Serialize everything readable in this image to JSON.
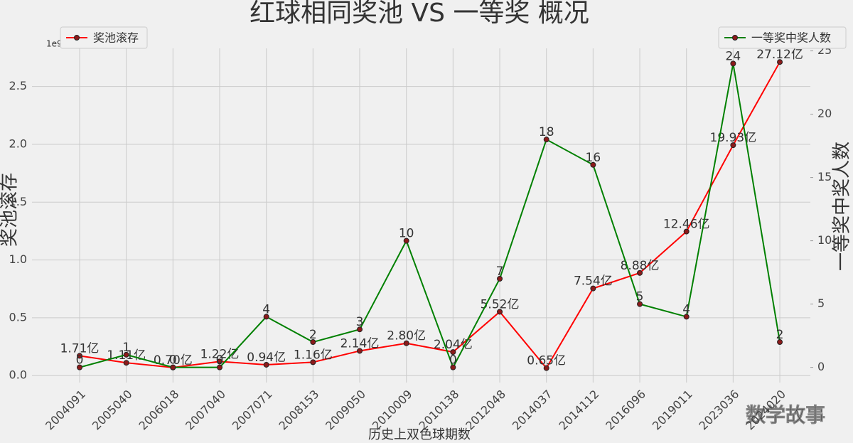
{
  "chart_data": {
    "type": "line",
    "title": "红球相同奖池 VS 一等奖 概况",
    "x_label": "历史上双色球期数",
    "y_label": "奖池滚存",
    "y2_label": "一等奖中奖人数",
    "y_offset_label": "1e9",
    "watermark": "数学故事",
    "categories": [
      "2004091",
      "2005040",
      "2006018",
      "2007040",
      "2007071",
      "2008153",
      "2009050",
      "2010009",
      "2010138",
      "2012048",
      "2014037",
      "2014112",
      "2016096",
      "2019011",
      "2023036",
      "2024020"
    ],
    "series": [
      {
        "name": "奖池滚存",
        "color": "red",
        "axis": "y",
        "legend": "upper left",
        "values": [
          171000000,
          111000000,
          70000000,
          122000000,
          94000000,
          116000000,
          214000000,
          280000000,
          204000000,
          552000000,
          65000000,
          754000000,
          888000000,
          1246000000,
          1993000000,
          2712000000
        ],
        "value_labels": [
          "1.71亿",
          "1.11亿",
          "0.70亿",
          "1.22亿",
          "0.94亿",
          "1.16亿",
          "2.14亿",
          "2.80亿",
          "2.04亿",
          "5.52亿",
          "0.65亿",
          "7.54亿",
          "8.88亿",
          "12.46亿",
          "19.93亿",
          "27.12亿"
        ]
      },
      {
        "name": "一等奖中奖人数",
        "color": "green",
        "axis": "y2",
        "legend": "upper right",
        "values": [
          0,
          1,
          0,
          0,
          4,
          2,
          3,
          10,
          0,
          7,
          18,
          16,
          5,
          4,
          24,
          2
        ]
      }
    ],
    "ylim": [
      -60000000,
      2830000000
    ],
    "yticks": [
      {
        "value": 0,
        "label": "0.0"
      },
      {
        "value": 500000000,
        "label": "0.5"
      },
      {
        "value": 1000000000,
        "label": "1.0"
      },
      {
        "value": 1500000000,
        "label": "1.5"
      },
      {
        "value": 2000000000,
        "label": "2.0"
      },
      {
        "value": 2500000000,
        "label": "2.5"
      }
    ],
    "y2lim": [
      -1.2,
      25.2
    ],
    "y2ticks": [
      0,
      5,
      10,
      15,
      20,
      25
    ],
    "grid": true
  }
}
